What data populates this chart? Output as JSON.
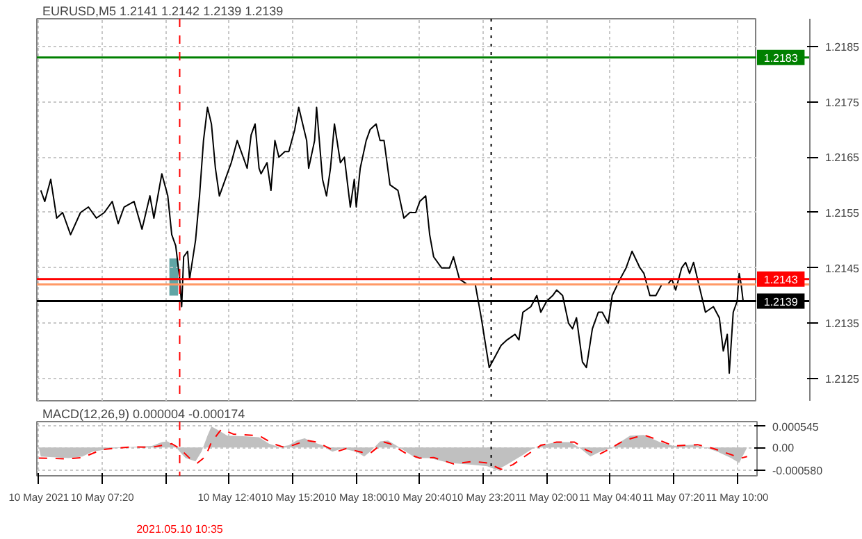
{
  "chart_data": [
    {
      "type": "line",
      "title": "EURUSD,M5  1.2141 1.2142 1.2139 1.2139",
      "x": [
        "2021-05-10T04:45",
        "2021-05-10T04:55",
        "2021-05-10T05:10",
        "2021-05-10T05:25",
        "2021-05-10T05:40",
        "2021-05-10T06:00",
        "2021-05-10T06:25",
        "2021-05-10T06:45",
        "2021-05-10T07:05",
        "2021-05-10T07:25",
        "2021-05-10T07:45",
        "2021-05-10T08:00",
        "2021-05-10T08:15",
        "2021-05-10T08:40",
        "2021-05-10T09:00",
        "2021-05-10T09:20",
        "2021-05-10T09:30",
        "2021-05-10T09:50",
        "2021-05-10T10:05",
        "2021-05-10T10:15",
        "2021-05-10T10:25",
        "2021-05-10T10:35",
        "2021-05-10T10:40",
        "2021-05-10T10:45",
        "2021-05-10T10:55",
        "2021-05-10T11:00",
        "2021-05-10T11:15",
        "2021-05-10T11:25",
        "2021-05-10T11:35",
        "2021-05-10T11:45",
        "2021-05-10T11:55",
        "2021-05-10T12:05",
        "2021-05-10T12:15",
        "2021-05-10T12:25",
        "2021-05-10T12:35",
        "2021-05-10T12:45",
        "2021-05-10T13:00",
        "2021-05-10T13:15",
        "2021-05-10T13:25",
        "2021-05-10T13:35",
        "2021-05-10T13:45",
        "2021-05-10T13:55",
        "2021-05-10T14:00",
        "2021-05-10T14:15",
        "2021-05-10T14:25",
        "2021-05-10T14:35",
        "2021-05-10T14:45",
        "2021-05-10T15:00",
        "2021-05-10T15:10",
        "2021-05-10T15:25",
        "2021-05-10T15:35",
        "2021-05-10T15:45",
        "2021-05-10T15:55",
        "2021-05-10T16:00",
        "2021-05-10T16:15",
        "2021-05-10T16:20",
        "2021-05-10T16:35",
        "2021-05-10T16:45",
        "2021-05-10T16:55",
        "2021-05-10T17:05",
        "2021-05-10T17:20",
        "2021-05-10T17:30",
        "2021-05-10T17:45",
        "2021-05-10T17:55",
        "2021-05-10T18:00",
        "2021-05-10T18:10",
        "2021-05-10T18:25",
        "2021-05-10T18:35",
        "2021-05-10T18:50",
        "2021-05-10T19:00",
        "2021-05-10T19:10",
        "2021-05-10T19:25",
        "2021-05-10T19:45",
        "2021-05-10T20:00",
        "2021-05-10T20:15",
        "2021-05-10T20:30",
        "2021-05-10T20:40",
        "2021-05-10T20:55",
        "2021-05-10T21:05",
        "2021-05-10T21:15",
        "2021-05-10T21:35",
        "2021-05-10T21:55",
        "2021-05-10T22:05",
        "2021-05-10T22:20",
        "2021-05-10T22:40",
        "2021-05-10T23:00",
        "2021-05-10T23:15",
        "2021-05-10T23:35",
        "2021-05-10T23:50",
        "2021-05-11T00:05",
        "2021-05-11T00:20",
        "2021-05-11T00:40",
        "2021-05-11T00:50",
        "2021-05-11T01:00",
        "2021-05-11T01:20",
        "2021-05-11T01:35",
        "2021-05-11T01:45",
        "2021-05-11T02:00",
        "2021-05-11T02:15",
        "2021-05-11T02:25",
        "2021-05-11T02:40",
        "2021-05-11T02:55",
        "2021-05-11T03:05",
        "2021-05-11T03:15",
        "2021-05-11T03:30",
        "2021-05-11T03:40",
        "2021-05-11T03:55",
        "2021-05-11T04:10",
        "2021-05-11T04:20",
        "2021-05-11T04:35",
        "2021-05-11T04:45",
        "2021-05-11T05:05",
        "2021-05-11T05:20",
        "2021-05-11T05:35",
        "2021-05-11T05:55",
        "2021-05-11T06:05",
        "2021-05-11T06:20",
        "2021-05-11T06:35",
        "2021-05-11T06:50",
        "2021-05-11T07:05",
        "2021-05-11T07:15",
        "2021-05-11T07:25",
        "2021-05-11T07:40",
        "2021-05-11T07:50",
        "2021-05-11T08:00",
        "2021-05-11T08:10",
        "2021-05-11T08:20",
        "2021-05-11T08:40",
        "2021-05-11T09:00",
        "2021-05-11T09:15",
        "2021-05-11T09:25",
        "2021-05-11T09:35",
        "2021-05-11T09:40",
        "2021-05-11T09:50",
        "2021-05-11T10:00",
        "2021-05-11T10:05",
        "2021-05-11T10:10",
        "2021-05-11T10:15"
      ],
      "series": [
        {
          "color": "#000000",
          "values": [
            1.2159,
            1.2157,
            1.2161,
            1.2154,
            1.2155,
            1.2151,
            1.2155,
            1.2156,
            1.2154,
            1.2155,
            1.2157,
            1.2153,
            1.2156,
            1.2157,
            1.2152,
            1.2158,
            1.2154,
            1.2162,
            1.2158,
            1.2151,
            1.2149,
            1.2143,
            1.2138,
            1.2147,
            1.2148,
            1.2143,
            1.215,
            1.2158,
            1.2168,
            1.2174,
            1.2171,
            1.2163,
            1.2158,
            1.216,
            1.2162,
            1.2164,
            1.2168,
            1.2165,
            1.2163,
            1.2169,
            1.2171,
            1.2163,
            1.2162,
            1.2164,
            1.2159,
            1.2168,
            1.2165,
            1.2166,
            1.2166,
            1.217,
            1.2174,
            1.2171,
            1.2168,
            1.2163,
            1.2168,
            1.2174,
            1.2161,
            1.2158,
            1.2163,
            1.2171,
            1.2164,
            1.2165,
            1.2156,
            1.2161,
            1.2156,
            1.2163,
            1.2168,
            1.217,
            1.2171,
            1.2168,
            1.2168,
            1.216,
            1.2159,
            1.2154,
            1.2155,
            1.2155,
            1.2157,
            1.2158,
            1.2151,
            1.2147,
            1.2145,
            1.2145,
            1.2147,
            1.2143,
            1.2142,
            1.2142,
            1.2136,
            1.2127,
            1.2129,
            1.2131,
            1.2132,
            1.2133,
            1.2132,
            1.2137,
            1.2138,
            1.214,
            1.2137,
            1.2139,
            1.214,
            1.2141,
            1.214,
            1.2135,
            1.2134,
            1.2136,
            1.2128,
            1.2127,
            1.2134,
            1.2137,
            1.2137,
            1.2135,
            1.214,
            1.2143,
            1.2145,
            1.2148,
            1.2145,
            1.2144,
            1.214,
            1.214,
            1.2142,
            1.2142,
            1.2143,
            1.2141,
            1.2145,
            1.2146,
            1.2144,
            1.2146,
            1.2143,
            1.2137,
            1.2138,
            1.2136,
            1.213,
            1.2133,
            1.2126,
            1.2137,
            1.2139,
            1.2144,
            1.2142,
            1.2139
          ]
        },
        {
          "type": "bar",
          "color": "#3a8f8f",
          "x": [
            "2021-05-10T10:20"
          ],
          "values": [
            0.00067
          ],
          "base": [
            1.214
          ]
        }
      ],
      "xlim": [
        "2021-05-10T04:35",
        "2021-05-11T10:50"
      ],
      "ylim": [
        1.2121,
        1.219
      ],
      "xticks": [
        "2021-05-10T04:40",
        "2021-05-10T07:20",
        "2021-05-10T10:00",
        "2021-05-10T12:40",
        "2021-05-10T15:20",
        "2021-05-10T18:00",
        "2021-05-10T20:40",
        "2021-05-10T23:20",
        "2021-05-11T02:00",
        "2021-05-11T04:40",
        "2021-05-11T07:20",
        "2021-05-11T10:00"
      ],
      "yticks": [
        1.2125,
        1.2135,
        1.2145,
        1.2155,
        1.2165,
        1.2175,
        1.2185
      ],
      "tick_labels": "y",
      "grid": true,
      "ref_lines": [
        {
          "axis": "y",
          "value": 1.2183,
          "label": "1.2183",
          "color": "#008000",
          "line_style": "solid"
        },
        {
          "axis": "y",
          "value": 1.2142,
          "label": null,
          "color": "#ff9966",
          "line_style": "solid"
        },
        {
          "axis": "y",
          "value": 1.2143,
          "label": "1.2143",
          "color": "#ff0000",
          "line_style": "solid"
        },
        {
          "axis": "y",
          "value": 1.2139,
          "label": "1.2139",
          "color": "#000000",
          "line_style": "solid"
        },
        {
          "axis": "x",
          "value": "2021-05-10T10:35",
          "label": null,
          "color": "#ff0000",
          "line_style": "dashed"
        },
        {
          "axis": "x",
          "value": "2021-05-10T23:40",
          "label": null,
          "color": "#000000",
          "line_style": "dotted"
        }
      ]
    },
    {
      "type": "line",
      "title": "MACD(12,26,9) 0.000004 -0.000174",
      "series": [
        {
          "type": "area",
          "color": "#c0c0c0",
          "x": [
            "2021-05-10T04:40",
            "2021-05-10T04:45",
            "2021-05-10T05:55",
            "2021-05-10T06:30",
            "2021-05-10T06:55",
            "2021-05-10T07:45",
            "2021-05-10T08:35",
            "2021-05-10T09:25",
            "2021-05-10T09:50",
            "2021-05-10T10:05",
            "2021-05-10T10:25",
            "2021-05-10T10:35",
            "2021-05-10T10:50",
            "2021-05-10T11:15",
            "2021-05-10T11:30",
            "2021-05-10T11:45",
            "2021-05-10T11:55",
            "2021-05-10T12:15",
            "2021-05-10T12:35",
            "2021-05-10T13:15",
            "2021-05-10T13:55",
            "2021-05-10T14:20",
            "2021-05-10T14:45",
            "2021-05-10T15:10",
            "2021-05-10T15:30",
            "2021-05-10T15:50",
            "2021-05-10T16:10",
            "2021-05-10T16:35",
            "2021-05-10T16:45",
            "2021-05-10T17:00",
            "2021-05-10T17:25",
            "2021-05-10T18:00",
            "2021-05-10T18:20",
            "2021-05-10T18:35",
            "2021-05-10T19:00",
            "2021-05-10T19:20",
            "2021-05-10T19:40",
            "2021-05-10T20:05",
            "2021-05-10T20:30",
            "2021-05-10T21:05",
            "2021-05-10T21:55",
            "2021-05-10T22:45",
            "2021-05-10T23:30",
            "2021-05-10T23:55",
            "2021-05-11T00:20",
            "2021-05-11T01:00",
            "2021-05-11T01:25",
            "2021-05-11T01:45",
            "2021-05-11T02:25",
            "2021-05-11T03:00",
            "2021-05-11T03:25",
            "2021-05-11T03:50",
            "2021-05-11T04:15",
            "2021-05-11T04:40",
            "2021-05-11T05:05",
            "2021-05-11T05:30",
            "2021-05-11T06:05",
            "2021-05-11T06:45",
            "2021-05-11T07:20",
            "2021-05-11T08:10",
            "2021-05-11T08:35",
            "2021-05-11T09:10",
            "2021-05-11T09:45",
            "2021-05-11T10:05",
            "2021-05-11T10:25"
          ],
          "values": [
            0,
            -0.000232,
            -0.000274,
            -0.000232,
            -0.000108,
            -2.5e-05,
            1.7e-05,
            4.2e-05,
            0.000141,
            0.000158,
            1.7e-05,
            -0.000108,
            -0.000274,
            -0.000357,
            -0.000108,
            0.000307,
            0.000545,
            0.000432,
            0.000307,
            0.000291,
            0.000266,
            0.0001,
            1.7e-05,
            5.8e-05,
            0.000183,
            0.000241,
            0.000141,
            5.8e-05,
            -2.5e-05,
            -0.000108,
            -2.5e-05,
            -0.000108,
            -0.000232,
            -0.000108,
            0.000158,
            0.000183,
            5.8e-05,
            -0.000108,
            -0.000274,
            -0.000274,
            -0.000398,
            -0.00044,
            -0.000481,
            -0.00058,
            -0.00044,
            -0.000191,
            -2.5e-05,
            5.8e-05,
            0.000141,
            0.000141,
            -2.5e-05,
            -0.000232,
            -0.000108,
            -2.5e-05,
            0.000141,
            0.000307,
            0.000324,
            0.000141,
            4.2e-05,
            7.5e-05,
            1.7e-05,
            -0.000108,
            -0.000274,
            -0.000398,
            0
          ]
        },
        {
          "type": "line",
          "color": "#ff0000",
          "line_style": "dashed",
          "x": [
            "2021-05-10T04:40",
            "2021-05-10T05:55",
            "2021-05-10T06:30",
            "2021-05-10T07:20",
            "2021-05-10T08:35",
            "2021-05-10T09:25",
            "2021-05-10T10:15",
            "2021-05-10T10:35",
            "2021-05-10T11:00",
            "2021-05-10T11:20",
            "2021-05-10T11:40",
            "2021-05-10T11:55",
            "2021-05-10T12:20",
            "2021-05-10T12:50",
            "2021-05-10T13:55",
            "2021-05-10T14:30",
            "2021-05-10T14:55",
            "2021-05-10T15:20",
            "2021-05-10T15:55",
            "2021-05-10T16:20",
            "2021-05-10T16:45",
            "2021-05-10T17:10",
            "2021-05-10T17:35",
            "2021-05-10T18:15",
            "2021-05-10T18:35",
            "2021-05-10T19:10",
            "2021-05-10T19:25",
            "2021-05-10T20:05",
            "2021-05-10T20:40",
            "2021-05-10T21:15",
            "2021-05-10T22:05",
            "2021-05-10T22:55",
            "2021-05-10T23:30",
            "2021-05-11T00:05",
            "2021-05-11T00:35",
            "2021-05-11T01:10",
            "2021-05-11T01:45",
            "2021-05-11T02:25",
            "2021-05-11T03:10",
            "2021-05-11T03:40",
            "2021-05-11T04:10",
            "2021-05-11T04:40",
            "2021-05-11T05:15",
            "2021-05-11T06:05",
            "2021-05-11T06:45",
            "2021-05-11T07:20",
            "2021-05-11T08:20",
            "2021-05-11T09:00",
            "2021-05-11T09:35",
            "2021-05-11T10:10",
            "2021-05-11T10:25"
          ],
          "values": [
            -0.000274,
            -0.000291,
            -0.000257,
            -5e-05,
            1.7e-05,
            8e-06,
            0.0001,
            -2.5e-05,
            -0.000274,
            -0.000398,
            -0.000232,
            0.000141,
            0.000473,
            0.000349,
            0.000307,
            0.0001,
            1.7e-05,
            5.8e-05,
            0.000183,
            0.000141,
            1.7e-05,
            -0.000108,
            -2.5e-05,
            -0.000125,
            -0.000149,
            0.000141,
            0.0001,
            -0.000149,
            -0.000274,
            -0.000257,
            -0.000423,
            -0.000357,
            -0.000398,
            -0.000564,
            -0.00044,
            -0.000191,
            5.8e-05,
            0.000141,
            0.000141,
            -6.6e-05,
            -0.000191,
            -2.5e-05,
            0.000183,
            0.000324,
            0.000183,
            4.2e-05,
            7.5e-05,
            -2.5e-05,
            -0.000149,
            -0.000274,
            -0.000232
          ]
        }
      ],
      "xlim": [
        "2021-05-10T04:35",
        "2021-05-11T10:50"
      ],
      "ylim": [
        -0.00073,
        0.00067
      ],
      "xticks": [
        {
          "value": "2021-05-10T04:40",
          "label": "10 May 2021"
        },
        {
          "value": "2021-05-10T07:20",
          "label": "10 May 07:20"
        },
        {
          "value": "2021-05-10T10:00",
          "label": null
        },
        {
          "value": "2021-05-10T12:40",
          "label": "10 May 12:40"
        },
        {
          "value": "2021-05-10T15:20",
          "label": "10 May 15:20"
        },
        {
          "value": "2021-05-10T18:00",
          "label": "10 May 18:00"
        },
        {
          "value": "2021-05-10T20:40",
          "label": "10 May 20:40"
        },
        {
          "value": "2021-05-10T23:20",
          "label": "10 May 23:20"
        },
        {
          "value": "2021-05-11T02:00",
          "label": "11 May 02:00"
        },
        {
          "value": "2021-05-11T04:40",
          "label": "11 May 04:40"
        },
        {
          "value": "2021-05-11T07:20",
          "label": "11 May 07:20"
        },
        {
          "value": "2021-05-11T10:00",
          "label": "11 May 10:00"
        }
      ],
      "yticks": [
        {
          "value": 0.000545,
          "label": "0.000545"
        },
        {
          "value": 0,
          "label": "0.00"
        },
        {
          "value": -0.00058,
          "label": "-0.000580"
        }
      ],
      "grid": true,
      "ref_lines": [
        {
          "axis": "x",
          "value": "2021-05-10T10:35",
          "label": "2021.05.10 10:35",
          "color": "#ff0000",
          "line_style": "dashed"
        },
        {
          "axis": "x",
          "value": "2021-05-10T23:40",
          "label": null,
          "color": "#000000",
          "line_style": "dotted"
        }
      ]
    }
  ]
}
